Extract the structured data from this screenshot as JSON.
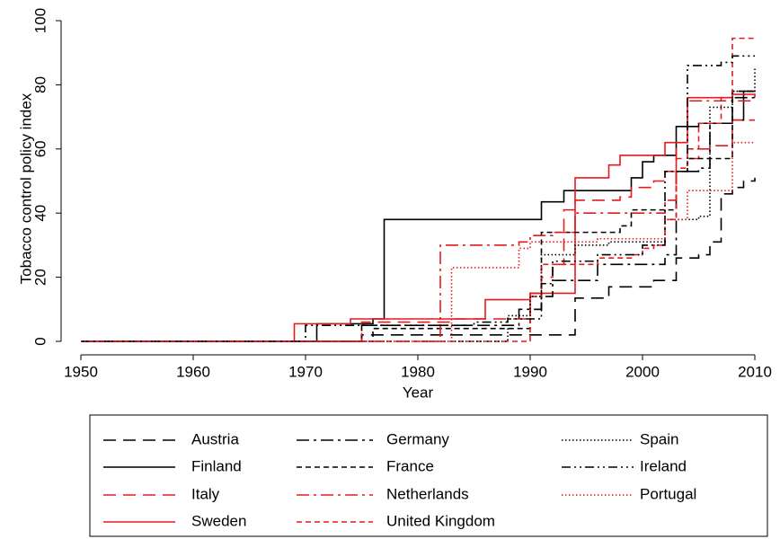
{
  "chart_data": {
    "type": "step",
    "x_label": "Year",
    "y_label": "Tobacco control policy index",
    "xlim": [
      1950,
      2010
    ],
    "xticks": [
      1950,
      1960,
      1970,
      1980,
      1990,
      2000,
      2010
    ],
    "ylim": [
      0,
      100
    ],
    "yticks": [
      0,
      20,
      40,
      60,
      80,
      100
    ],
    "grid": false,
    "legend": "bottom",
    "series": [
      {
        "name": "Austria",
        "color": "#000000",
        "style": "long-dash",
        "x": [
          1950,
          1975,
          1994,
          1997,
          2001,
          2003,
          2005,
          2006,
          2007,
          2008,
          2009,
          2010
        ],
        "values": [
          0,
          2,
          13.5,
          17,
          19,
          26,
          27,
          31,
          46,
          48,
          50,
          51
        ]
      },
      {
        "name": "Finland",
        "color": "#000000",
        "style": "solid",
        "x": [
          1950,
          1971,
          1976,
          1977,
          1991,
          1993,
          1999,
          2000,
          2001,
          2003,
          2005,
          2008,
          2009,
          2010
        ],
        "values": [
          0,
          5.5,
          7,
          38,
          43.5,
          47,
          51,
          56,
          58,
          67,
          68,
          69,
          78,
          78
        ]
      },
      {
        "name": "Italy",
        "color": "#e8191d",
        "style": "long-dash",
        "x": [
          1950,
          1975,
          1983,
          1990,
          1991,
          1992,
          1993,
          1994,
          1998,
          1999,
          2001,
          2002,
          2003,
          2005,
          2006,
          2008,
          2010
        ],
        "values": [
          0,
          6,
          7,
          15,
          20,
          24,
          41,
          44,
          45,
          48,
          50,
          53,
          57,
          60,
          61,
          69,
          69
        ]
      },
      {
        "name": "Sweden",
        "color": "#e8191d",
        "style": "solid",
        "x": [
          1950,
          1969,
          1974,
          1986,
          1990,
          1994,
          1997,
          1998,
          2002,
          2004,
          2008,
          2010
        ],
        "values": [
          0,
          5.5,
          7,
          13,
          15,
          51,
          55,
          58,
          62,
          76,
          77,
          76
        ]
      },
      {
        "name": "Germany",
        "color": "#000000",
        "style": "dash-dot",
        "x": [
          1950,
          1975,
          1989,
          1991,
          1992,
          1996,
          2002,
          2003,
          2005,
          2006,
          2008,
          2010
        ],
        "values": [
          0,
          5,
          10,
          14,
          19,
          24,
          27,
          53,
          54,
          68,
          76,
          76
        ]
      },
      {
        "name": "France",
        "color": "#000000",
        "style": "short-dash",
        "x": [
          1950,
          1976,
          1990,
          1991,
          1998,
          1999,
          2003,
          2004,
          2008,
          2010
        ],
        "values": [
          0,
          4,
          10,
          34,
          36,
          41,
          53,
          57,
          78,
          78
        ]
      },
      {
        "name": "Netherlands",
        "color": "#e8191d",
        "style": "dash-dot",
        "x": [
          1950,
          1982,
          1989,
          1990,
          1992,
          1994,
          2002,
          2003,
          2004,
          2010
        ],
        "values": [
          0,
          30,
          31,
          33,
          34,
          40,
          44,
          62,
          75,
          75
        ]
      },
      {
        "name": "United Kingdom",
        "color": "#e8191d",
        "style": "short-dash",
        "x": [
          1950,
          1990,
          1991,
          1996,
          1999,
          2000,
          2001,
          2002,
          2003,
          2004,
          2005,
          2007,
          2008,
          2010
        ],
        "values": [
          0,
          14,
          24,
          26,
          27,
          29,
          30,
          38,
          54,
          60,
          68,
          76,
          94.5,
          94.5
        ]
      },
      {
        "name": "Spain",
        "color": "#000000",
        "style": "dotted",
        "x": [
          1950,
          1988,
          1990,
          1991,
          1994,
          1997,
          2002,
          2005,
          2006,
          2008,
          2010
        ],
        "values": [
          0,
          8,
          14,
          27,
          30,
          31,
          38,
          39,
          73,
          78,
          85
        ]
      },
      {
        "name": "Ireland",
        "color": "#000000",
        "style": "dash-dot-dot",
        "x": [
          1950,
          1970,
          1985,
          1988,
          1991,
          1992,
          1996,
          2000,
          2002,
          2004,
          2007,
          2008,
          2010
        ],
        "values": [
          0,
          5,
          6,
          7,
          18,
          25,
          27,
          30,
          53,
          86,
          87,
          89,
          89
        ]
      },
      {
        "name": "Portugal",
        "color": "#e8191d",
        "style": "dotted",
        "x": [
          1950,
          1983,
          1989,
          1990,
          1996,
          2002,
          2004,
          2008,
          2010
        ],
        "values": [
          0,
          23,
          29,
          31,
          32,
          38,
          47,
          62,
          62
        ]
      }
    ]
  }
}
